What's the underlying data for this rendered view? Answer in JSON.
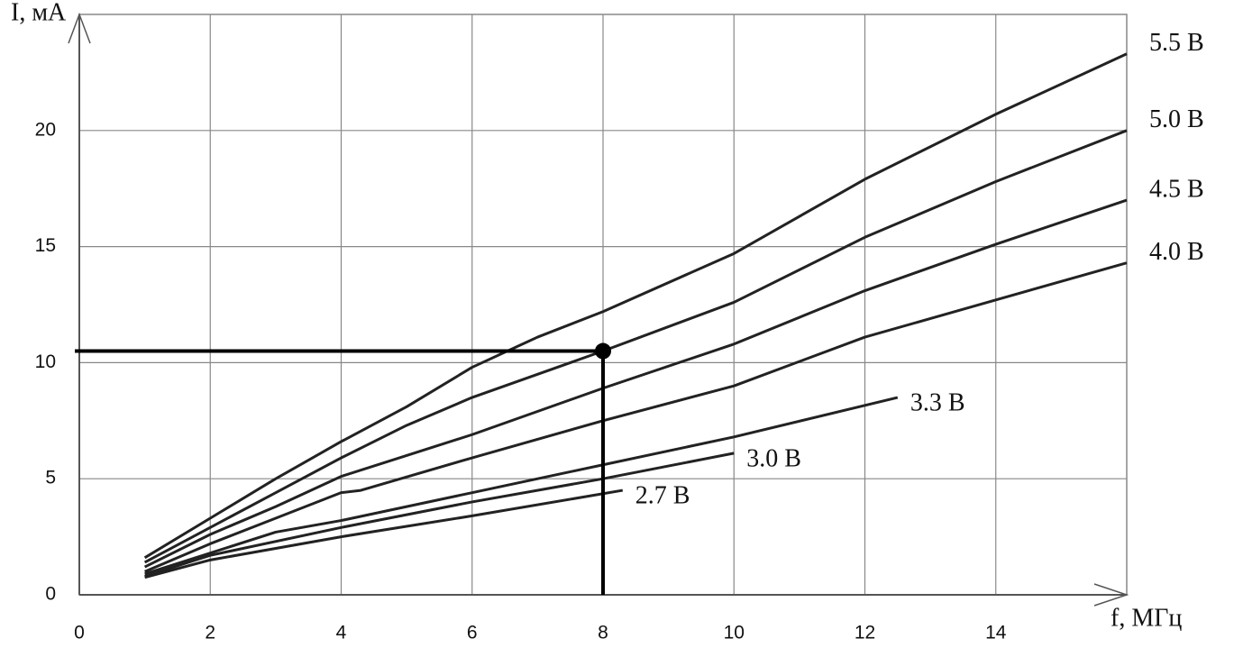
{
  "chart_data": {
    "type": "line",
    "x_label": "f, МГц",
    "y_label": "I, мА",
    "xlim": [
      0,
      16
    ],
    "ylim": [
      0,
      25
    ],
    "xticks": [
      0,
      2,
      4,
      6,
      8,
      10,
      12,
      14
    ],
    "yticks": [
      0,
      5,
      10,
      15,
      20
    ],
    "grid": true,
    "series": [
      {
        "name": "5.5 В",
        "color": "#222222",
        "x": [
          1,
          2,
          3,
          4,
          5,
          6,
          7,
          8,
          10,
          12,
          14,
          16
        ],
        "values": [
          1.6,
          3.3,
          5.0,
          6.6,
          8.1,
          9.8,
          11.1,
          12.2,
          14.7,
          17.9,
          20.7,
          23.3
        ]
      },
      {
        "name": "5.0 В",
        "color": "#222222",
        "x": [
          1,
          2,
          3,
          4,
          5,
          6,
          8,
          10,
          12,
          14,
          16
        ],
        "values": [
          1.4,
          2.9,
          4.4,
          5.9,
          7.3,
          8.5,
          10.5,
          12.6,
          15.4,
          17.8,
          20.0
        ]
      },
      {
        "name": "4.5 В",
        "color": "#222222",
        "x": [
          1,
          2,
          3,
          4,
          5,
          6,
          8,
          10,
          12,
          14,
          16
        ],
        "values": [
          1.2,
          2.6,
          3.8,
          5.1,
          6.0,
          6.9,
          8.9,
          10.8,
          13.1,
          15.1,
          17.0
        ]
      },
      {
        "name": "4.0 В",
        "color": "#222222",
        "x": [
          1,
          2,
          3,
          4,
          4.3,
          6,
          8,
          10,
          12,
          14,
          16
        ],
        "values": [
          1.0,
          2.2,
          3.3,
          4.4,
          4.5,
          5.9,
          7.5,
          9.0,
          11.1,
          12.7,
          14.3
        ]
      },
      {
        "name": "3.3 В",
        "color": "#222222",
        "x": [
          1,
          2,
          3,
          4,
          6,
          8,
          10,
          12.5
        ],
        "values": [
          0.9,
          1.8,
          2.7,
          3.2,
          4.4,
          5.6,
          6.8,
          8.5
        ]
      },
      {
        "name": "3.0 В",
        "color": "#222222",
        "x": [
          1,
          2,
          4,
          6,
          8,
          10
        ],
        "values": [
          0.8,
          1.7,
          2.9,
          4.0,
          5.0,
          6.1
        ]
      },
      {
        "name": "2.7 В",
        "color": "#222222",
        "x": [
          1,
          2,
          4,
          6,
          8.3
        ],
        "values": [
          0.75,
          1.5,
          2.5,
          3.4,
          4.5
        ]
      }
    ],
    "marker": {
      "x": 8,
      "y": 10.5
    }
  }
}
